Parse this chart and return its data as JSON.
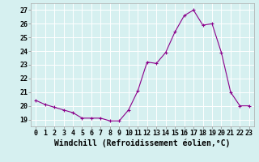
{
  "x": [
    0,
    1,
    2,
    3,
    4,
    5,
    6,
    7,
    8,
    9,
    10,
    11,
    12,
    13,
    14,
    15,
    16,
    17,
    18,
    19,
    20,
    21,
    22,
    23
  ],
  "y": [
    20.4,
    20.1,
    19.9,
    19.7,
    19.5,
    19.1,
    19.1,
    19.1,
    18.9,
    18.9,
    19.7,
    21.1,
    23.2,
    23.1,
    23.9,
    25.4,
    26.6,
    27.0,
    25.9,
    26.0,
    23.9,
    21.0,
    20.0,
    20.0
  ],
  "line_color": "#8B008B",
  "marker": "+",
  "bg_color": "#d6f0f0",
  "grid_color": "#ffffff",
  "xlabel": "Windchill (Refroidissement éolien,°C)",
  "ylabel_ticks": [
    19,
    20,
    21,
    22,
    23,
    24,
    25,
    26,
    27
  ],
  "xlim": [
    -0.5,
    23.5
  ],
  "ylim": [
    18.5,
    27.5
  ],
  "xlabel_fontsize": 7,
  "tick_fontsize": 6,
  "title": ""
}
